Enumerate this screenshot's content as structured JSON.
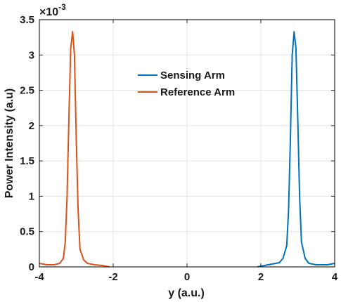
{
  "chart_data": {
    "type": "line",
    "xlabel": "y (a.u.)",
    "ylabel": "Power Intensity (a.u)",
    "y_scale_label": "×10",
    "y_scale_exponent": "-3",
    "xlim": [
      -4,
      4
    ],
    "ylim": [
      0,
      3.5
    ],
    "x_ticks": [
      -4,
      -2,
      0,
      2,
      4
    ],
    "y_ticks": [
      0,
      0.5,
      1,
      1.5,
      2,
      2.5,
      3,
      3.5
    ],
    "x_tick_labels": [
      "-4",
      "-2",
      "0",
      "2",
      "4"
    ],
    "y_tick_labels": [
      "0",
      "0.5",
      "1",
      "1.5",
      "2",
      "2.5",
      "3",
      "3.5"
    ],
    "grid": true,
    "legend_position": "center",
    "series": [
      {
        "name": "Sensing Arm",
        "color": "#0072BD",
        "x": [
          1.9,
          2.1,
          2.3,
          2.5,
          2.6,
          2.7,
          2.75,
          2.8,
          2.85,
          2.9,
          2.95,
          3.0,
          3.05,
          3.1,
          3.2,
          3.3,
          3.5,
          3.8,
          4.0
        ],
        "y": [
          0.0,
          0.02,
          0.04,
          0.06,
          0.12,
          0.3,
          0.8,
          1.8,
          3.0,
          3.33,
          3.1,
          2.1,
          1.0,
          0.35,
          0.12,
          0.05,
          0.03,
          0.03,
          0.05
        ]
      },
      {
        "name": "Reference Arm",
        "color": "#D95319",
        "x": [
          -4.0,
          -3.8,
          -3.6,
          -3.45,
          -3.35,
          -3.3,
          -3.25,
          -3.2,
          -3.15,
          -3.1,
          -3.05,
          -3.0,
          -2.95,
          -2.9,
          -2.8,
          -2.7,
          -2.5,
          -2.3,
          -2.1
        ],
        "y": [
          0.05,
          0.03,
          0.03,
          0.05,
          0.12,
          0.35,
          1.0,
          2.1,
          3.1,
          3.33,
          3.0,
          1.8,
          0.8,
          0.25,
          0.1,
          0.05,
          0.03,
          0.02,
          0.0
        ]
      }
    ]
  },
  "legend": {
    "items": [
      {
        "label": "Sensing Arm",
        "color": "#0072BD"
      },
      {
        "label": "Reference Arm",
        "color": "#D95319"
      }
    ]
  }
}
